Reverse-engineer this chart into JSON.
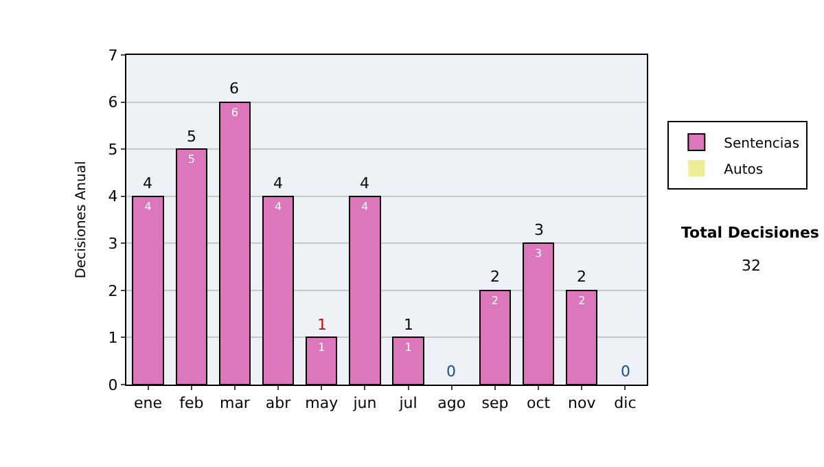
{
  "chart_data": {
    "type": "bar",
    "ylabel": "Decisiones Anual",
    "categories": [
      "ene",
      "feb",
      "mar",
      "abr",
      "may",
      "jun",
      "jul",
      "ago",
      "sep",
      "oct",
      "nov",
      "dic"
    ],
    "series": [
      {
        "name": "Sentencias",
        "color": "#dd77bb",
        "values": [
          4,
          5,
          6,
          4,
          1,
          4,
          1,
          0,
          2,
          3,
          2,
          0
        ],
        "value_labels": [
          "4",
          "5",
          "6",
          "4",
          "1",
          "4",
          "1",
          null,
          "2",
          "3",
          "2",
          null
        ]
      },
      {
        "name": "Autos",
        "color": "#eeee99",
        "values": [
          0,
          0,
          0,
          0,
          0,
          0,
          0,
          0,
          0,
          0,
          0,
          0
        ]
      }
    ],
    "stacked": true,
    "totals": [
      "4",
      "5",
      "6",
      "4",
      "1",
      "4",
      "1",
      "0",
      "2",
      "3",
      "2",
      "0"
    ],
    "ylim": [
      0,
      7
    ],
    "yticks": [
      0,
      1,
      2,
      3,
      4,
      5,
      6,
      7
    ],
    "grid": "y",
    "legend": "right",
    "annotations": [
      "Total Decisiones",
      "32"
    ]
  }
}
